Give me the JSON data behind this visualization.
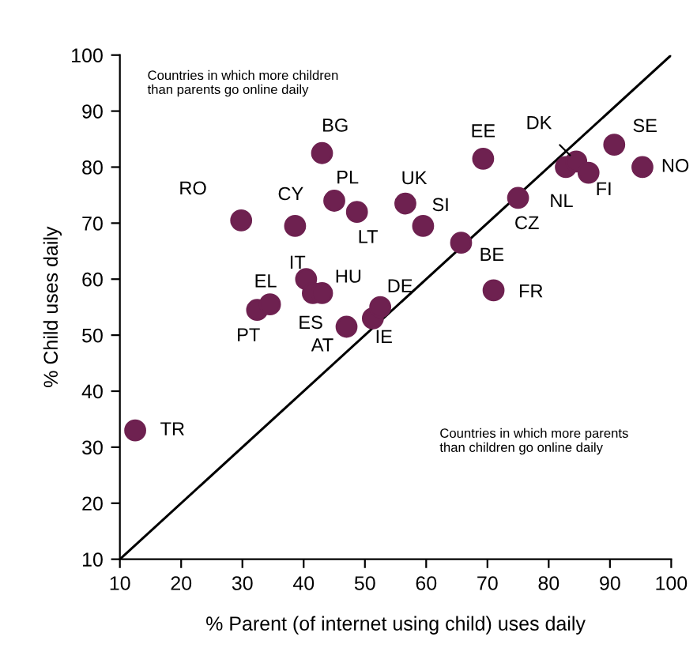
{
  "chart_data": {
    "type": "scatter",
    "xlabel": "% Parent (of internet using child) uses daily",
    "ylabel": "% Child uses daily",
    "xlim": [
      10,
      100
    ],
    "ylim": [
      10,
      100
    ],
    "xticks": [
      10,
      20,
      30,
      40,
      50,
      60,
      70,
      80,
      90,
      100
    ],
    "yticks": [
      10,
      20,
      30,
      40,
      50,
      60,
      70,
      80,
      90,
      100
    ],
    "grid": false,
    "series": [
      {
        "marker": "circle",
        "color": "#6e2150",
        "x": [
          12.5,
          29.8,
          32.4,
          34.5,
          38.6,
          43,
          45,
          48.7,
          40.4,
          41.5,
          43,
          47,
          51.3,
          52.5,
          56.6,
          59.5,
          69.3,
          65.7,
          71,
          75,
          82.8,
          84.5,
          86.5,
          90.7,
          95.3
        ],
        "values": [
          33,
          70.5,
          54.5,
          55.5,
          69.5,
          82.5,
          74,
          72,
          60,
          57.5,
          57.5,
          51.5,
          53,
          55,
          73.5,
          69.5,
          81.5,
          66.5,
          58,
          74.5,
          80,
          81,
          79,
          84,
          80
        ]
      },
      {
        "type": "line",
        "color": "#000000",
        "line_style": "solid",
        "x": [
          10,
          100
        ],
        "values": [
          10,
          100
        ]
      }
    ],
    "annotations": [
      {
        "text": "TR",
        "x": 12.5,
        "y": 33
      },
      {
        "text": "RO",
        "x": 29.8,
        "y": 70.5
      },
      {
        "text": "PT",
        "x": 32.4,
        "y": 54.5
      },
      {
        "text": "EL",
        "x": 34.5,
        "y": 55.5
      },
      {
        "text": "CY",
        "x": 38.6,
        "y": 69.5
      },
      {
        "text": "BG",
        "x": 43,
        "y": 82.5
      },
      {
        "text": "PL",
        "x": 45,
        "y": 74
      },
      {
        "text": "LT",
        "x": 48.7,
        "y": 72
      },
      {
        "text": "IT",
        "x": 40.4,
        "y": 60
      },
      {
        "text": "ES",
        "x": 41.5,
        "y": 57.5
      },
      {
        "text": "HU",
        "x": 43,
        "y": 57.5
      },
      {
        "text": "AT",
        "x": 47,
        "y": 51.5
      },
      {
        "text": "IE",
        "x": 51.3,
        "y": 53
      },
      {
        "text": "DE",
        "x": 52.5,
        "y": 55
      },
      {
        "text": "UK",
        "x": 56.6,
        "y": 73.5
      },
      {
        "text": "SI",
        "x": 59.5,
        "y": 69.5
      },
      {
        "text": "EE",
        "x": 69.3,
        "y": 81.5
      },
      {
        "text": "BE",
        "x": 65.7,
        "y": 66.5
      },
      {
        "text": "FR",
        "x": 71,
        "y": 58
      },
      {
        "text": "CZ",
        "x": 75,
        "y": 74.5
      },
      {
        "text": "NL",
        "x": 82.8,
        "y": 80
      },
      {
        "text": "DK",
        "x": 84.5,
        "y": 81
      },
      {
        "text": "FI",
        "x": 86.5,
        "y": 79
      },
      {
        "text": "SE",
        "x": 90.7,
        "y": 84
      },
      {
        "text": "NO",
        "x": 95.3,
        "y": 80
      },
      "Countries in which more children\nthan parents go online daily",
      "Countries in which more parents\nthan children go online daily"
    ]
  }
}
